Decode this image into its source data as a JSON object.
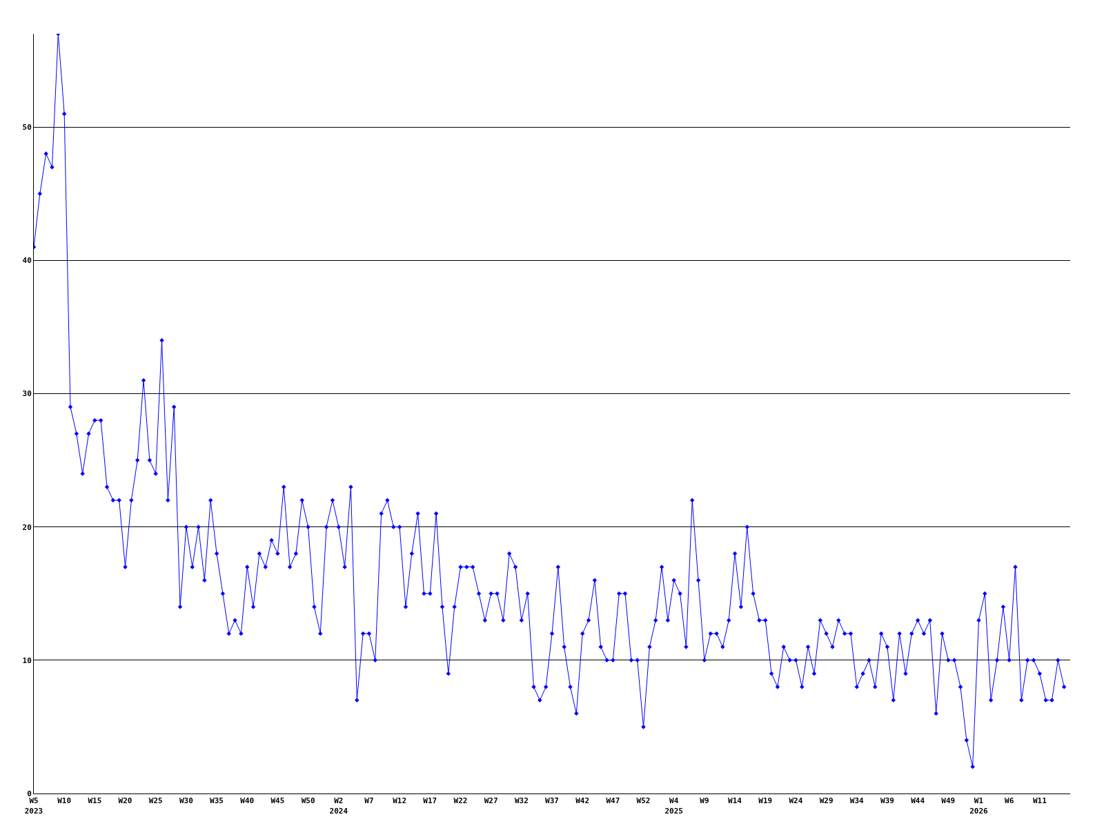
{
  "chart_data": {
    "type": "line",
    "categories": [
      "W5\n2023",
      null,
      null,
      null,
      null,
      "W10",
      null,
      null,
      null,
      null,
      "W15",
      null,
      null,
      null,
      null,
      "W20",
      null,
      null,
      null,
      null,
      "W25",
      null,
      null,
      null,
      null,
      "W30",
      null,
      null,
      null,
      null,
      "W35",
      null,
      null,
      null,
      null,
      "W40",
      null,
      null,
      null,
      null,
      "W45",
      null,
      null,
      null,
      null,
      "W50",
      null,
      null,
      null,
      null,
      "W2\n2024",
      null,
      null,
      null,
      null,
      "W7",
      null,
      null,
      null,
      null,
      "W12",
      null,
      null,
      null,
      null,
      "W17",
      null,
      null,
      null,
      null,
      "W22",
      null,
      null,
      null,
      null,
      "W27",
      null,
      null,
      null,
      null,
      "W32",
      null,
      null,
      null,
      null,
      "W37",
      null,
      null,
      null,
      null,
      "W42",
      null,
      null,
      null,
      null,
      "W47",
      null,
      null,
      null,
      null,
      "W52",
      null,
      null,
      null,
      null,
      "W4\n2025",
      null,
      null,
      null,
      null,
      "W9",
      null,
      null,
      null,
      null,
      "W14",
      null,
      null,
      null,
      null,
      "W19",
      null,
      null,
      null,
      null,
      "W24",
      null,
      null,
      null,
      null,
      "W29",
      null,
      null,
      null,
      null,
      "W34",
      null,
      null,
      null,
      null,
      "W39",
      null,
      null,
      null,
      null,
      "W44",
      null,
      null,
      null,
      null,
      "W49",
      null,
      null,
      null,
      null,
      "W1\n2026",
      null,
      null,
      null,
      null,
      "W6",
      null,
      null,
      null,
      null,
      "W11",
      null,
      null,
      null,
      null
    ],
    "values": [
      41,
      45,
      48,
      47,
      57,
      51,
      29,
      27,
      24,
      27,
      28,
      28,
      23,
      22,
      22,
      17,
      22,
      25,
      31,
      25,
      24,
      34,
      22,
      29,
      14,
      20,
      17,
      20,
      16,
      22,
      18,
      15,
      12,
      13,
      12,
      17,
      14,
      18,
      17,
      19,
      18,
      23,
      17,
      18,
      22,
      20,
      14,
      12,
      20,
      22,
      20,
      17,
      23,
      7,
      12,
      12,
      10,
      21,
      22,
      20,
      20,
      14,
      18,
      21,
      15,
      15,
      21,
      14,
      9,
      14,
      17,
      17,
      17,
      15,
      13,
      15,
      15,
      13,
      18,
      17,
      13,
      15,
      8,
      7,
      8,
      12,
      17,
      11,
      8,
      6,
      12,
      13,
      16,
      11,
      10,
      10,
      15,
      15,
      10,
      10,
      5,
      11,
      13,
      17,
      13,
      16,
      15,
      11,
      22,
      16,
      10,
      12,
      12,
      11,
      13,
      18,
      14,
      20,
      15,
      13,
      13,
      9,
      8,
      11,
      10,
      10,
      8,
      11,
      9,
      13,
      12,
      11,
      13,
      12,
      12,
      8,
      9,
      10,
      8,
      12,
      11,
      7,
      12,
      9,
      12,
      13,
      12,
      13,
      6,
      12,
      10,
      10,
      8,
      4,
      2,
      13,
      15,
      7,
      10,
      14,
      10,
      17,
      7,
      10,
      10,
      9,
      7,
      7,
      10,
      8
    ],
    "color": "#0000ff",
    "ylim": [
      0,
      57
    ],
    "yticks": [
      0,
      10,
      20,
      30,
      40,
      50
    ],
    "grid": "y",
    "marker": "diamond",
    "line_style": "solid"
  }
}
